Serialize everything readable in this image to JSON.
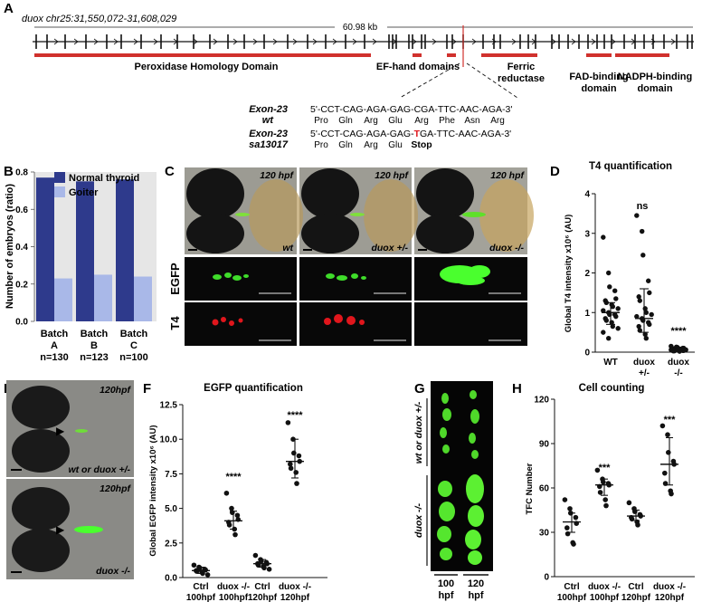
{
  "panels": {
    "A": {
      "letter": "A",
      "locus": "duox chr25:31,550,072-31,608,029",
      "length": "60.98 kb",
      "domains": [
        "Peroxidase Homology Domain",
        "EF-hand domains",
        "Ferric",
        "reductase",
        "FAD-binding",
        "domain",
        "NADPH-binding",
        "domain"
      ],
      "wt_label_1": "Exon-23",
      "wt_label_2": "wt",
      "wt_seq": "5'-CCT-CAG-AGA-GAG-CGA-TTC-AAC-AGA-3'",
      "wt_aa": [
        "Pro",
        "Gln",
        "Arg",
        "Glu",
        "Arg",
        "Phe",
        "Asn",
        "Arg"
      ],
      "mut_label_1": "Exon-23",
      "mut_label_2": "sa13017",
      "mut_seq_pre": "5'-CCT-CAG-AGA-GAG-",
      "mut_seq_T": "T",
      "mut_seq_post": "GA-TTC-AAC-AGA-3'",
      "mut_aa": [
        "Pro",
        "Gln",
        "Arg",
        "Glu"
      ],
      "mut_stop": "Stop"
    },
    "B": {
      "letter": "B",
      "ylabel": "Number of embryos (ratio)",
      "legend": [
        "Normal thyroid",
        "Goiter"
      ],
      "batch_word": "Batch",
      "batches": [
        "A",
        "B",
        "C"
      ],
      "ns": [
        "n=130",
        "n=123",
        "n=100"
      ],
      "yticks": [
        "0.0",
        "0.2",
        "0.4",
        "0.6",
        "0.8"
      ]
    },
    "C": {
      "letter": "C",
      "stage": "120 hpf",
      "genotypes": [
        "wt",
        "duox +/-",
        "duox -/-"
      ],
      "row_egfp": "EGFP",
      "row_t4": "T4"
    },
    "D": {
      "letter": "D",
      "title": "T4 quantification",
      "ylabel": "Global T4 intensity x10⁶ (AU)",
      "yticks": [
        "0",
        "1",
        "2",
        "3",
        "4"
      ],
      "groups": [
        "WT",
        "duox",
        "+/-",
        "duox",
        "-/-"
      ],
      "ns": "ns",
      "sig": "****"
    },
    "E": {
      "letter": "E",
      "stage": "120hpf",
      "genotype_top": "wt or duox +/-",
      "genotype_bottom": "duox -/-"
    },
    "F": {
      "letter": "F",
      "title": "EGFP quantification",
      "ylabel": "Global EGFP intensity x10⁶ (AU)",
      "yticks": [
        "0.0",
        "2.5",
        "5.0",
        "7.5",
        "10.0",
        "12.5"
      ],
      "groups": [
        "Ctrl",
        "100hpf",
        "duox -/-",
        "100hpf",
        "Ctrl",
        "120hpf",
        "duox -/-",
        "120hpf"
      ],
      "sig": "****"
    },
    "G": {
      "letter": "G",
      "genotype_top": "wt or duox +/-",
      "genotype_bottom": "duox -/-",
      "stages": [
        "100",
        "hpf",
        "120",
        "hpf"
      ]
    },
    "H": {
      "letter": "H",
      "title": "Cell counting",
      "ylabel": "TFC Number",
      "yticks": [
        "0",
        "30",
        "60",
        "90",
        "120"
      ],
      "groups": [
        "Ctrl",
        "100hpf",
        "duox -/-",
        "100hpf",
        "Ctrl",
        "120hpf",
        "duox -/-",
        "120hpf"
      ],
      "sig": "***"
    }
  },
  "colors": {
    "normal": "#2e3a8c",
    "goiter": "#a9b8e8",
    "domain": "#d0312d",
    "egfp": "#3fdc2a",
    "t4": "#e0161c",
    "stop": "#e0161c"
  },
  "chart_data": [
    {
      "type": "bar",
      "panel": "B",
      "categories": [
        "A",
        "B",
        "C"
      ],
      "series": [
        {
          "name": "Normal thyroid",
          "values": [
            0.77,
            0.75,
            0.76
          ]
        },
        {
          "name": "Goiter",
          "values": [
            0.23,
            0.25,
            0.24
          ]
        }
      ],
      "ylabel": "Number of embryos (ratio)",
      "ylim": [
        0,
        0.8
      ],
      "legend": "top-right",
      "grid": false
    },
    {
      "type": "scatter",
      "panel": "D",
      "title": "T4 quantification",
      "ylabel": "Global T4 intensity x10⁶ (AU)",
      "ylim": [
        0,
        4
      ],
      "categories": [
        "WT",
        "duox +/-",
        "duox -/-"
      ],
      "groups": [
        {
          "values": [
            2.9,
            2.0,
            1.65,
            1.55,
            1.35,
            1.3,
            1.25,
            1.2,
            1.15,
            1.1,
            1.05,
            1.0,
            0.95,
            0.95,
            0.9,
            0.85,
            0.8,
            0.75,
            0.65,
            0.6,
            0.5,
            0.35
          ],
          "mean": 1.0,
          "sd": [
            0.7,
            1.25
          ]
        },
        {
          "values": [
            3.45,
            3.05,
            2.45,
            1.8,
            1.5,
            1.4,
            1.3,
            1.1,
            1.0,
            0.95,
            0.9,
            0.85,
            0.8,
            0.75,
            0.7,
            0.65,
            0.55,
            0.45,
            0.35
          ],
          "mean": 0.85,
          "sd": [
            0.5,
            1.6
          ]
        },
        {
          "values": [
            0.15,
            0.13,
            0.12,
            0.1,
            0.1,
            0.09,
            0.08,
            0.08,
            0.07,
            0.06,
            0.06,
            0.05,
            0.05,
            0.04,
            0.04,
            0.03,
            0.03,
            0.02
          ],
          "mean": 0.06,
          "sd": [
            0.02,
            0.1
          ]
        }
      ]
    },
    {
      "type": "scatter",
      "panel": "F",
      "title": "EGFP quantification",
      "ylabel": "Global EGFP intensity x10⁶ (AU)",
      "ylim": [
        0,
        12.5
      ],
      "categories": [
        "Ctrl 100hpf",
        "duox -/- 100hpf",
        "Ctrl 120hpf",
        "duox -/- 120hpf"
      ],
      "groups": [
        {
          "values": [
            0.9,
            0.75,
            0.7,
            0.6,
            0.55,
            0.5,
            0.45,
            0.4,
            0.3,
            0.2
          ],
          "mean": 0.5,
          "sd": [
            0.3,
            0.75
          ]
        },
        {
          "values": [
            6.1,
            5.0,
            4.7,
            4.5,
            4.2,
            4.0,
            3.8,
            3.5,
            3.1
          ],
          "mean": 4.1,
          "sd": [
            3.5,
            4.8
          ]
        },
        {
          "values": [
            1.6,
            1.3,
            1.2,
            1.1,
            1.0,
            1.0,
            0.9,
            0.8,
            0.7,
            0.6
          ],
          "mean": 1.0,
          "sd": [
            0.75,
            1.3
          ]
        },
        {
          "values": [
            11.2,
            10.0,
            9.0,
            8.8,
            8.4,
            8.2,
            7.9,
            7.6,
            6.8
          ],
          "mean": 8.4,
          "sd": [
            7.2,
            10.0
          ]
        }
      ]
    },
    {
      "type": "scatter",
      "panel": "H",
      "title": "Cell counting",
      "ylabel": "TFC Number",
      "ylim": [
        0,
        120
      ],
      "categories": [
        "Ctrl 100hpf",
        "duox -/- 100hpf",
        "Ctrl 120hpf",
        "duox -/- 120hpf"
      ],
      "groups": [
        {
          "values": [
            52,
            46,
            43,
            40,
            36,
            33,
            29,
            23,
            22
          ],
          "mean": 37,
          "sd": [
            30,
            43
          ]
        },
        {
          "values": [
            72,
            66,
            64,
            63,
            62,
            61,
            57,
            52,
            48
          ],
          "mean": 62,
          "sd": [
            55,
            66
          ]
        },
        {
          "values": [
            50,
            46,
            44,
            42,
            41,
            40,
            39,
            37,
            35
          ],
          "mean": 41,
          "sd": [
            38,
            45
          ]
        },
        {
          "values": [
            102,
            96,
            84,
            78,
            76,
            70,
            63,
            58,
            56
          ],
          "mean": 76,
          "sd": [
            62,
            94
          ]
        }
      ]
    }
  ]
}
